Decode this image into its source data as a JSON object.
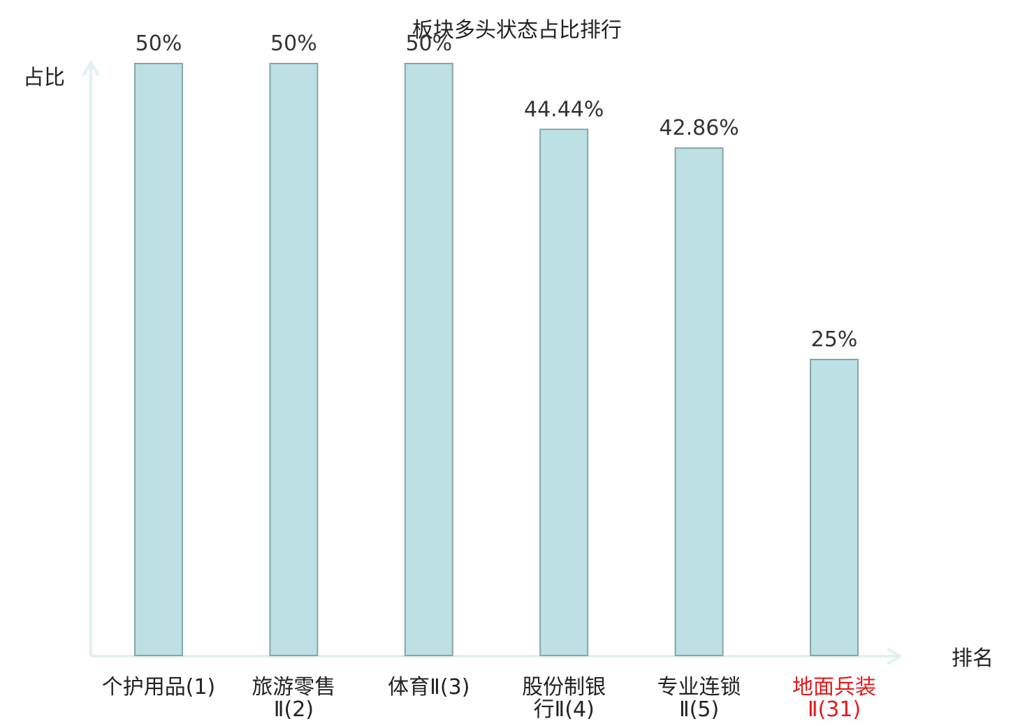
{
  "chart_data": {
    "type": "bar",
    "title": "板块多头状态占比排行",
    "xlabel": "排名",
    "ylabel": "占比",
    "ylim": [
      0,
      50
    ],
    "grid": false,
    "categories": [
      {
        "lines": [
          "个护用品(1)"
        ],
        "color": "#222222"
      },
      {
        "lines": [
          "旅游零售",
          "Ⅱ(2)"
        ],
        "color": "#222222"
      },
      {
        "lines": [
          "体育Ⅱ(3)"
        ],
        "color": "#222222"
      },
      {
        "lines": [
          "股份制银",
          "行Ⅱ(4)"
        ],
        "color": "#222222"
      },
      {
        "lines": [
          "专业连锁",
          "Ⅱ(5)"
        ],
        "color": "#222222"
      },
      {
        "lines": [
          "地面兵装",
          "Ⅱ(31)"
        ],
        "color": "#e31a1c"
      }
    ],
    "values": [
      50,
      50,
      50,
      44.44,
      42.86,
      25
    ],
    "value_labels": [
      "50%",
      "50%",
      "50%",
      "44.44%",
      "42.86%",
      "25%"
    ],
    "colors": {
      "bar_fill": "#bce0e3",
      "bar_stroke": "#86a6a9",
      "axis": "#dff2ef",
      "highlight": "#e31a1c"
    }
  }
}
